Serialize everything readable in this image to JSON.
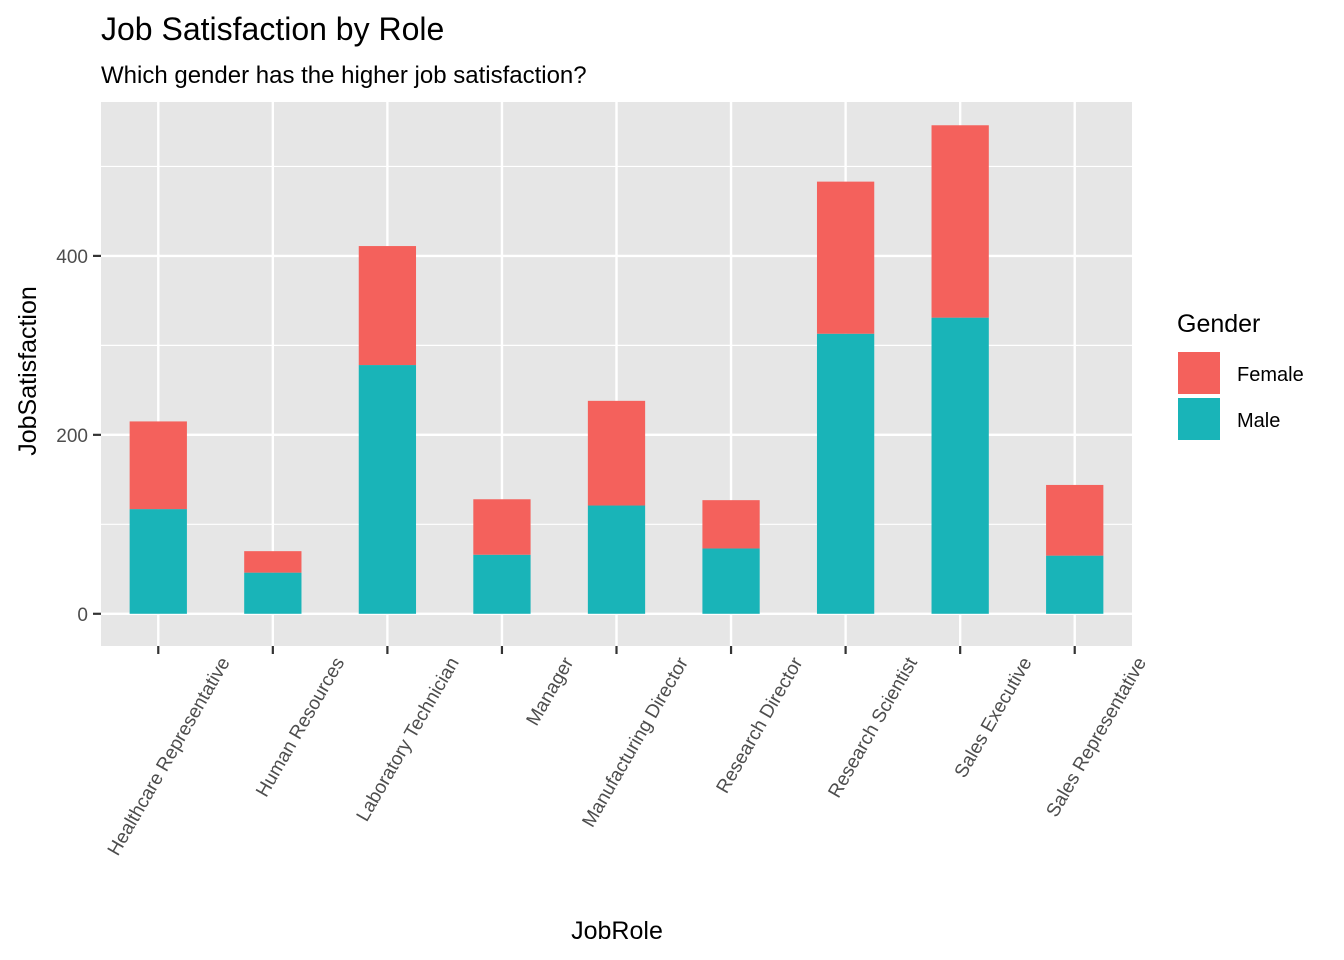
{
  "chart_data": {
    "type": "bar",
    "stacked": true,
    "title": "Job Satisfaction by Role",
    "subtitle": "Which gender has the higher job satisfaction?",
    "xlabel": "JobRole",
    "ylabel": "JobSatisfaction",
    "categories": [
      "Healthcare Representative",
      "Human Resources",
      "Laboratory Technician",
      "Manager",
      "Manufacturing Director",
      "Research Director",
      "Research Scientist",
      "Sales Executive",
      "Sales Representative"
    ],
    "series": [
      {
        "name": "Male",
        "color": "#19b4b8",
        "values": [
          117,
          46,
          278,
          66,
          121,
          73,
          313,
          331,
          65
        ]
      },
      {
        "name": "Female",
        "color": "#f4615c",
        "values": [
          98,
          24,
          133,
          62,
          117,
          54,
          170,
          215,
          79
        ]
      }
    ],
    "totals": [
      215,
      70,
      411,
      128,
      238,
      127,
      483,
      546,
      144
    ],
    "ylim": [
      -36,
      572
    ],
    "y_ticks": [
      0,
      200,
      400
    ],
    "y_tick_labels": [
      "0",
      "200",
      "400"
    ],
    "grid": true,
    "panel_background": "#e6e6e6",
    "legend": {
      "title": "Gender",
      "placement": "right",
      "entries": [
        {
          "label": "Female",
          "color": "#f4615c"
        },
        {
          "label": "Male",
          "color": "#19b4b8"
        }
      ]
    }
  }
}
